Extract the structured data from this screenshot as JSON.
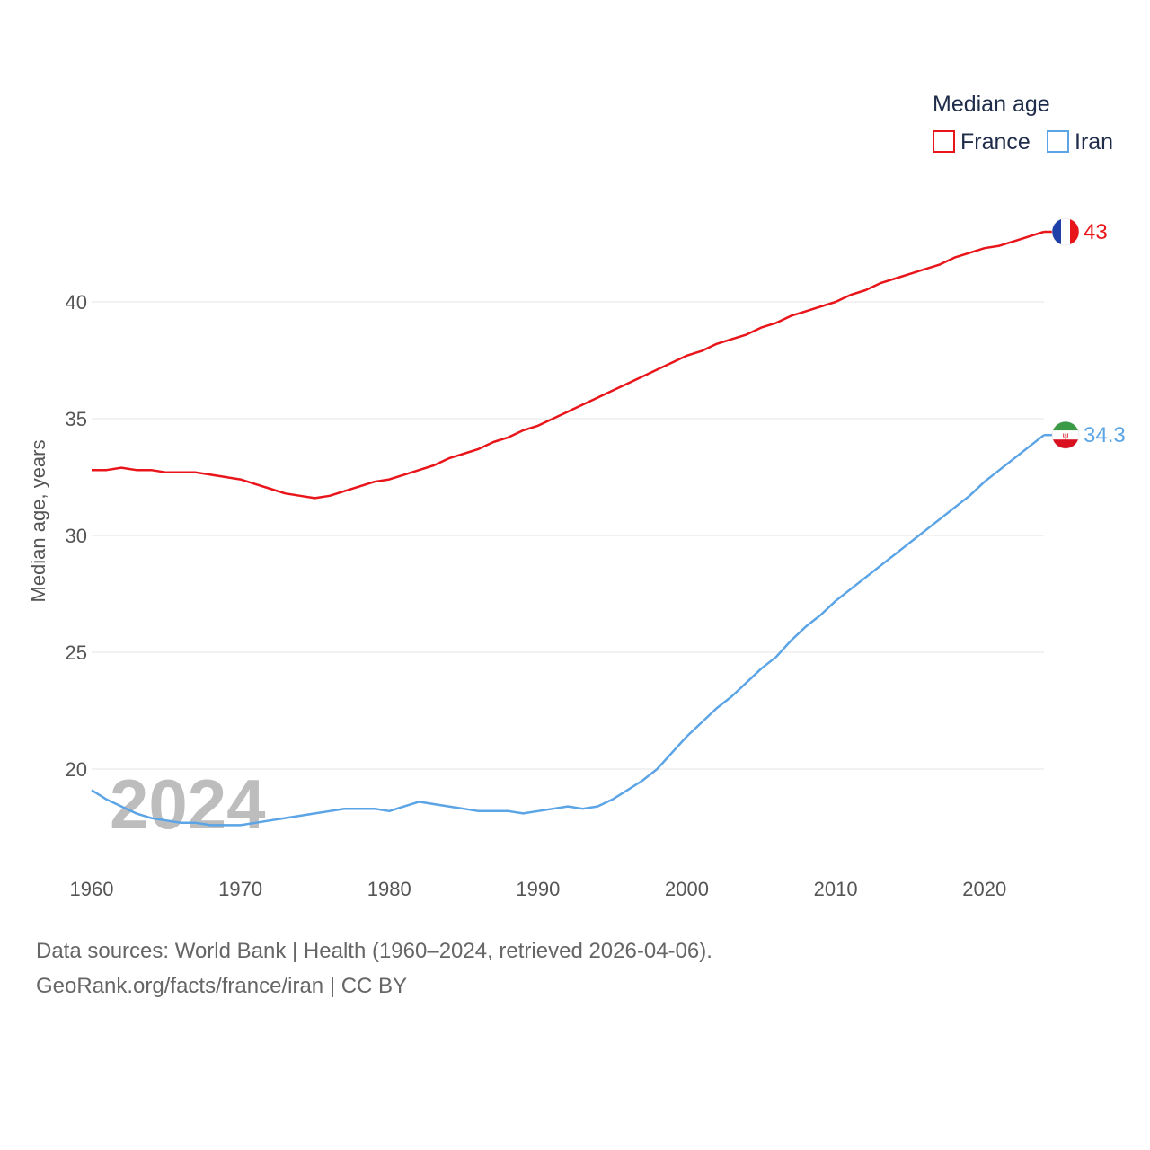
{
  "chart_data": {
    "type": "line",
    "title": "",
    "xlabel": "",
    "ylabel": "Median age, years",
    "xlim": [
      1960,
      2024
    ],
    "ylim": [
      16,
      46
    ],
    "y_ticks": [
      20,
      25,
      30,
      35,
      40
    ],
    "x_ticks": [
      1960,
      1970,
      1980,
      1990,
      2000,
      2010,
      2020
    ],
    "watermark_year": "2024",
    "legend": {
      "title": "Median age",
      "position": "top-right"
    },
    "x": [
      1960,
      1961,
      1962,
      1963,
      1964,
      1965,
      1966,
      1967,
      1968,
      1969,
      1970,
      1971,
      1972,
      1973,
      1974,
      1975,
      1976,
      1977,
      1978,
      1979,
      1980,
      1981,
      1982,
      1983,
      1984,
      1985,
      1986,
      1987,
      1988,
      1989,
      1990,
      1991,
      1992,
      1993,
      1994,
      1995,
      1996,
      1997,
      1998,
      1999,
      2000,
      2001,
      2002,
      2003,
      2004,
      2005,
      2006,
      2007,
      2008,
      2009,
      2010,
      2011,
      2012,
      2013,
      2014,
      2015,
      2016,
      2017,
      2018,
      2019,
      2020,
      2021,
      2022,
      2023,
      2024
    ],
    "series": [
      {
        "name": "France",
        "color": "#e8161b",
        "end_label": "43",
        "flag": "france-flag-icon",
        "values": [
          32.8,
          32.8,
          32.9,
          32.8,
          32.8,
          32.7,
          32.7,
          32.7,
          32.6,
          32.5,
          32.4,
          32.2,
          32.0,
          31.8,
          31.7,
          31.6,
          31.7,
          31.9,
          32.1,
          32.3,
          32.4,
          32.6,
          32.8,
          33.0,
          33.3,
          33.5,
          33.7,
          34.0,
          34.2,
          34.5,
          34.7,
          35.0,
          35.3,
          35.6,
          35.9,
          36.2,
          36.5,
          36.8,
          37.1,
          37.4,
          37.7,
          37.9,
          38.2,
          38.4,
          38.6,
          38.9,
          39.1,
          39.4,
          39.6,
          39.8,
          40.0,
          40.3,
          40.5,
          40.8,
          41.0,
          41.2,
          41.4,
          41.6,
          41.9,
          42.1,
          42.3,
          42.4,
          42.6,
          42.8,
          43.0
        ]
      },
      {
        "name": "Iran",
        "color": "#5ba4e5",
        "end_label": "34.3",
        "flag": "iran-flag-icon",
        "values": [
          19.1,
          18.7,
          18.4,
          18.1,
          17.9,
          17.8,
          17.7,
          17.7,
          17.6,
          17.6,
          17.6,
          17.7,
          17.8,
          17.9,
          18.0,
          18.1,
          18.2,
          18.3,
          18.3,
          18.3,
          18.2,
          18.4,
          18.6,
          18.5,
          18.4,
          18.3,
          18.2,
          18.2,
          18.2,
          18.1,
          18.2,
          18.3,
          18.4,
          18.3,
          18.4,
          18.7,
          19.1,
          19.5,
          20.0,
          20.7,
          21.4,
          22.0,
          22.6,
          23.1,
          23.7,
          24.3,
          24.8,
          25.5,
          26.1,
          26.6,
          27.2,
          27.7,
          28.2,
          28.7,
          29.2,
          29.7,
          30.2,
          30.7,
          31.2,
          31.7,
          32.3,
          32.8,
          33.3,
          33.8,
          34.3
        ]
      }
    ]
  },
  "footer": {
    "line1": "Data sources: World Bank | Health (1960–2024, retrieved 2026-04-06).",
    "line2": "GeoRank.org/facts/france/iran | CC BY"
  }
}
